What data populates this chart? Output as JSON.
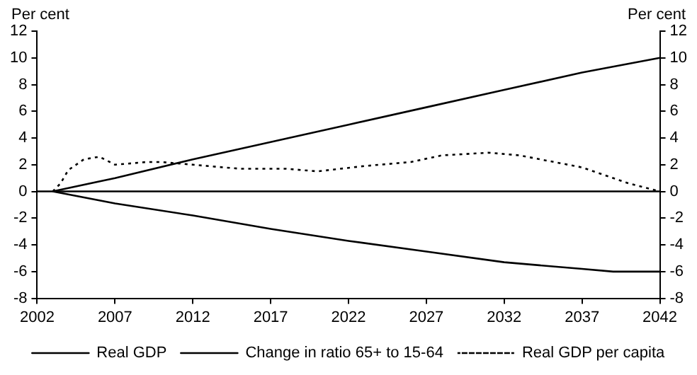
{
  "chart_data": {
    "type": "line",
    "ylabel": "Per cent",
    "y2label": "Per cent",
    "xlim": [
      2002,
      2042
    ],
    "xticks": [
      2002,
      2007,
      2012,
      2017,
      2022,
      2027,
      2032,
      2037,
      2042
    ],
    "ylim": [
      -8,
      12
    ],
    "yticks": [
      -8,
      -6,
      -4,
      -2,
      0,
      2,
      4,
      6,
      8,
      10,
      12
    ],
    "y2lim": [
      -8,
      12
    ],
    "y2ticks": [
      -8,
      -6,
      -4,
      -2,
      0,
      2,
      4,
      6,
      8,
      10,
      12
    ],
    "grid": false,
    "legend": "bottom",
    "marker": "none",
    "ref_lines": [
      {
        "axis": "y",
        "value": 0,
        "color": "#000000"
      }
    ],
    "series": [
      {
        "name": "Real GDP",
        "color": "#000000",
        "line_style": "solid",
        "x": [
          2003,
          2007,
          2012,
          2017,
          2022,
          2027,
          2032,
          2037,
          2042
        ],
        "values": [
          0,
          1.0,
          2.4,
          3.7,
          5.0,
          6.3,
          7.6,
          8.9,
          10.0
        ]
      },
      {
        "name": "Change in ratio 65+ to 15-64",
        "color": "#000000",
        "line_style": "solid",
        "x": [
          2003,
          2007,
          2012,
          2017,
          2022,
          2027,
          2032,
          2037,
          2039,
          2042
        ],
        "values": [
          0,
          -0.9,
          -1.8,
          -2.8,
          -3.7,
          -4.5,
          -5.3,
          -5.8,
          -6.0,
          -6.0
        ]
      },
      {
        "name": "Real GDP per capita",
        "color": "#000000",
        "line_style": "dotted",
        "x": [
          2003,
          2003.5,
          2004,
          2005,
          2006,
          2007,
          2009,
          2010,
          2012,
          2015,
          2018,
          2020,
          2023,
          2026,
          2028,
          2031,
          2033,
          2037,
          2040,
          2042
        ],
        "values": [
          0,
          0.6,
          1.6,
          2.4,
          2.6,
          2.0,
          2.2,
          2.2,
          2.0,
          1.7,
          1.7,
          1.5,
          1.9,
          2.2,
          2.7,
          2.9,
          2.7,
          1.8,
          0.6,
          0
        ]
      }
    ]
  }
}
